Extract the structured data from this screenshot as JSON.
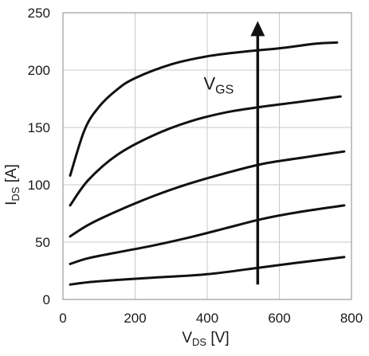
{
  "chart_data": {
    "type": "line",
    "title": "",
    "xlabel": {
      "main": "V",
      "sub": "DS",
      "unit": " [V]"
    },
    "ylabel": {
      "main": "I",
      "sub": "DS",
      "unit": " [A]"
    },
    "xlim": [
      0,
      800
    ],
    "ylim": [
      0,
      250
    ],
    "xticks": [
      0,
      200,
      400,
      600,
      800
    ],
    "yticks": [
      0,
      50,
      100,
      150,
      200,
      250
    ],
    "grid": true,
    "legend": "none",
    "line_color": "#111111",
    "grid_color": "#c8c8c8",
    "series": [
      {
        "x": [
          20,
          70,
          150,
          250,
          400,
          550,
          650,
          780
        ],
        "values": [
          13,
          15,
          17,
          19,
          22,
          28,
          32,
          37
        ]
      },
      {
        "x": [
          20,
          70,
          150,
          250,
          350,
          450,
          550,
          650,
          780
        ],
        "values": [
          31,
          36,
          41,
          47,
          54,
          62,
          70,
          76,
          82
        ]
      },
      {
        "x": [
          20,
          70,
          150,
          250,
          350,
          450,
          550,
          650,
          780
        ],
        "values": [
          55,
          65,
          77,
          90,
          101,
          110,
          118,
          123,
          129
        ]
      },
      {
        "x": [
          20,
          70,
          150,
          250,
          350,
          450,
          550,
          650,
          770
        ],
        "values": [
          82,
          104,
          126,
          143,
          155,
          163,
          168,
          172,
          177
        ]
      },
      {
        "x": [
          20,
          60,
          100,
          150,
          200,
          300,
          400,
          500,
          600,
          700,
          760
        ],
        "values": [
          108,
          148,
          168,
          183,
          193,
          205,
          212,
          216,
          219,
          223,
          224
        ]
      }
    ],
    "annotations": [
      {
        "type": "arrow",
        "x": 540,
        "y_start": 13,
        "y_end": 240
      },
      {
        "type": "text",
        "main": "V",
        "sub": "GS",
        "x": 390,
        "y": 183
      }
    ]
  }
}
